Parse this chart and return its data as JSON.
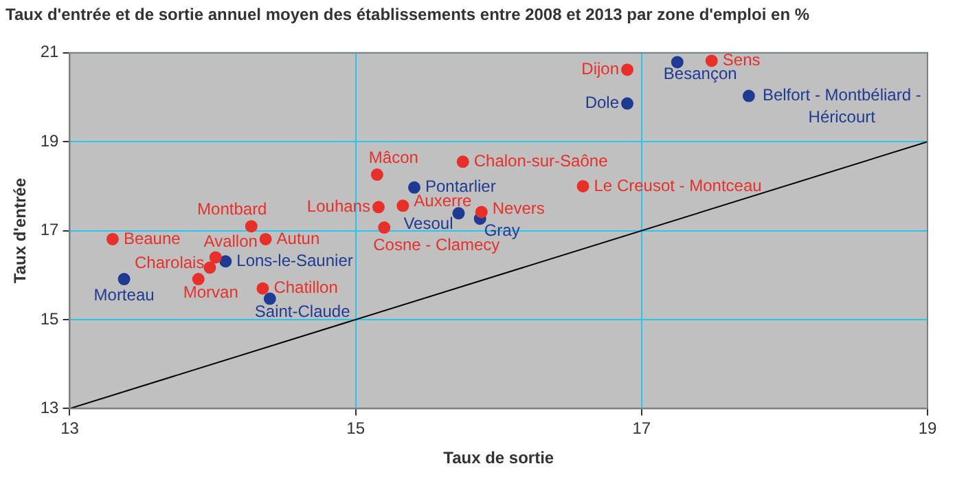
{
  "chart_data": {
    "type": "scatter",
    "title": "Taux d'entrée et de sortie annuel moyen des établissements entre 2008 et 2013 par zone d'emploi en %",
    "xlabel": "Taux de sortie",
    "ylabel": "Taux d'entrée",
    "xlim": [
      13,
      19
    ],
    "xticks": [
      13,
      15,
      17,
      19
    ],
    "ylim": [
      13,
      21
    ],
    "yticks": [
      13,
      15,
      17,
      19,
      21
    ],
    "grid": true,
    "marker": "circle",
    "series": [
      {
        "color": "#e8302a",
        "x": [
          13.3,
          14.27,
          14.37,
          14.02,
          13.98,
          13.9,
          14.35,
          15.15,
          15.16,
          15.33,
          15.2,
          15.75,
          15.88,
          16.59,
          16.9,
          17.49
        ],
        "values": [
          16.81,
          17.1,
          16.81,
          16.4,
          16.17,
          15.91,
          15.7,
          18.26,
          17.53,
          17.56,
          17.07,
          18.55,
          17.42,
          18.0,
          20.62,
          20.82
        ]
      },
      {
        "color": "#1f3a93",
        "x": [
          13.38,
          14.09,
          14.4,
          15.41,
          15.72,
          15.87,
          16.9,
          17.25,
          17.75
        ],
        "values": [
          15.91,
          16.31,
          15.47,
          17.97,
          17.39,
          17.27,
          19.86,
          20.79,
          20.03
        ]
      },
      {
        "type": "line",
        "color": "#000000",
        "marker": "none",
        "x": [
          13,
          19
        ],
        "values": [
          13,
          19
        ]
      }
    ],
    "annotations": [
      {
        "text": "Beaune",
        "x": 13.3,
        "y": 16.81
      },
      {
        "text": "Montbard",
        "x": 14.27,
        "y": 17.1
      },
      {
        "text": "Autun",
        "x": 14.37,
        "y": 16.81
      },
      {
        "text": "Avallon",
        "x": 14.02,
        "y": 16.4
      },
      {
        "text": "Charolais",
        "x": 13.98,
        "y": 16.17
      },
      {
        "text": "Morvan",
        "x": 13.9,
        "y": 15.91
      },
      {
        "text": "Chatillon",
        "x": 14.35,
        "y": 15.7
      },
      {
        "text": "Mâcon",
        "x": 15.15,
        "y": 18.26
      },
      {
        "text": "Louhans",
        "x": 15.16,
        "y": 17.53
      },
      {
        "text": "Auxerre",
        "x": 15.33,
        "y": 17.56
      },
      {
        "text": "Cosne - Clamecy",
        "x": 15.2,
        "y": 17.07
      },
      {
        "text": "Chalon-sur-Saône",
        "x": 15.75,
        "y": 18.55
      },
      {
        "text": "Nevers",
        "x": 15.88,
        "y": 17.42
      },
      {
        "text": "Le Creusot - Montceau",
        "x": 16.59,
        "y": 18.0
      },
      {
        "text": "Dijon",
        "x": 16.9,
        "y": 20.62
      },
      {
        "text": "Sens",
        "x": 17.49,
        "y": 20.82
      },
      {
        "text": "Morteau",
        "x": 13.38,
        "y": 15.91
      },
      {
        "text": "Lons-le-Saunier",
        "x": 14.09,
        "y": 16.31
      },
      {
        "text": "Saint-Claude",
        "x": 14.4,
        "y": 15.47
      },
      {
        "text": "Pontarlier",
        "x": 15.41,
        "y": 17.97
      },
      {
        "text": "Vesoul",
        "x": 15.72,
        "y": 17.39
      },
      {
        "text": "Gray",
        "x": 15.87,
        "y": 17.27
      },
      {
        "text": "Dole",
        "x": 16.9,
        "y": 19.86
      },
      {
        "text": "Besançon",
        "x": 17.25,
        "y": 20.79
      },
      {
        "text": "Belfort - Montbéliard -\nHéricourt",
        "x": 17.75,
        "y": 20.03
      }
    ]
  }
}
